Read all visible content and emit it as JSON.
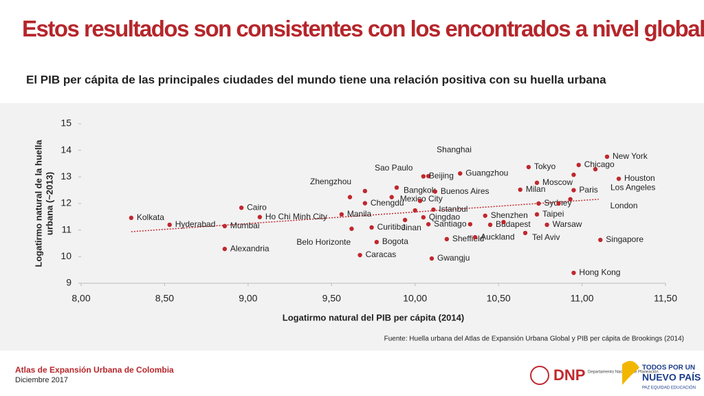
{
  "header": {
    "title": "Estos resultados son consistentes con los encontrados a nivel global",
    "subtitle": "El PIB per cápita de las principales ciudades del mundo tiene una relación positiva con su huella urbana"
  },
  "chart_data": {
    "type": "scatter",
    "color": "#c0282d",
    "trend_color": "#c0282d",
    "xlabel": "Logatirmo natural del PIB per cápita (2014)",
    "ylabel": [
      "Logatirmo natural de la huella",
      "urbana (~2013)"
    ],
    "xlim": [
      8,
      11.5
    ],
    "ylim": [
      9,
      15
    ],
    "xticks": [
      {
        "value": 8,
        "label": "8,00"
      },
      {
        "value": 8.5,
        "label": "8,50"
      },
      {
        "value": 9,
        "label": "9,00"
      },
      {
        "value": 9.5,
        "label": "9,50"
      },
      {
        "value": 10,
        "label": "10,00"
      },
      {
        "value": 10.5,
        "label": "10,50"
      },
      {
        "value": 11,
        "label": "11,00"
      },
      {
        "value": 11.5,
        "label": "11,50"
      }
    ],
    "yticks": [
      9,
      10,
      11,
      12,
      13,
      14,
      15
    ],
    "labels": [
      "Kolkata",
      "Hyderabad",
      "Mumbai",
      "Alexandria",
      "Cairo",
      "Ho Chi Minh City",
      "Manila",
      "Zhengzhou",
      "Belo Horizonte",
      "Caracas",
      "Chengdu",
      null,
      "Curitiba",
      "Bogota",
      "Sao Paulo",
      "Mexico City",
      "Bangkok",
      "Jinan",
      null,
      "Qingdao",
      "Santiago",
      "Gwangju",
      "Shanghai",
      "Beijing",
      "Istanbul",
      "Buenos Aires",
      "Guangzhou",
      "Sheffield",
      null,
      "Auckland",
      "Shenzhen",
      "Budapest",
      null,
      "Tel Aviv",
      "Milan",
      "Tokyo",
      "Moscow",
      "Sydney",
      "Taipei",
      "Warsaw",
      null,
      "London",
      "Paris",
      null,
      "Hong Kong",
      "Chicago",
      "Los Angeles",
      "Singapore",
      "New York",
      "Houston"
    ],
    "x": [
      8.3,
      8.53,
      8.86,
      8.86,
      8.96,
      9.07,
      9.56,
      9.61,
      9.62,
      9.67,
      9.7,
      9.7,
      9.74,
      9.77,
      9.89,
      9.86,
      10.03,
      9.94,
      10.0,
      10.05,
      10.08,
      10.1,
      10.08,
      10.05,
      10.11,
      10.12,
      10.27,
      10.19,
      10.33,
      10.36,
      10.42,
      10.45,
      10.53,
      10.66,
      10.63,
      10.68,
      10.73,
      10.74,
      10.73,
      10.79,
      10.86,
      10.93,
      10.95,
      10.95,
      10.95,
      10.98,
      11.08,
      11.11,
      11.15,
      11.22
    ],
    "y": [
      11.46,
      11.2,
      11.15,
      10.29,
      11.84,
      11.49,
      11.59,
      12.24,
      11.05,
      10.06,
      12.01,
      12.47,
      11.1,
      10.55,
      12.6,
      12.24,
      12.1,
      11.38,
      11.74,
      11.48,
      11.22,
      9.93,
      13.03,
      13.02,
      11.77,
      12.45,
      13.13,
      10.66,
      11.22,
      10.73,
      11.54,
      11.2,
      11.3,
      10.89,
      12.52,
      13.37,
      12.78,
      12.0,
      11.59,
      11.2,
      12.0,
      12.16,
      12.5,
      13.08,
      9.39,
      13.45,
      13.29,
      10.63,
      13.76,
      12.93
    ],
    "trendline": {
      "x": [
        8.3,
        11.1
      ],
      "y": [
        10.94,
        12.16
      ]
    }
  },
  "source": "Fuente: Huella urbana del Atlas de Expansión Urbana Global  y PIB per cápita de Brookings (2014)",
  "footer": {
    "name": "Atlas de Expansión Urbana de Colombia",
    "date": "Diciembre 2017",
    "dnp": "DNP",
    "dnp_sub": "Departamento Nacional de Planeación",
    "slogan1": "TODOS POR UN",
    "slogan2": "NUEVO PAÍS",
    "slogan3": "PAZ  EQUIDAD  EDUCACIÓN"
  }
}
